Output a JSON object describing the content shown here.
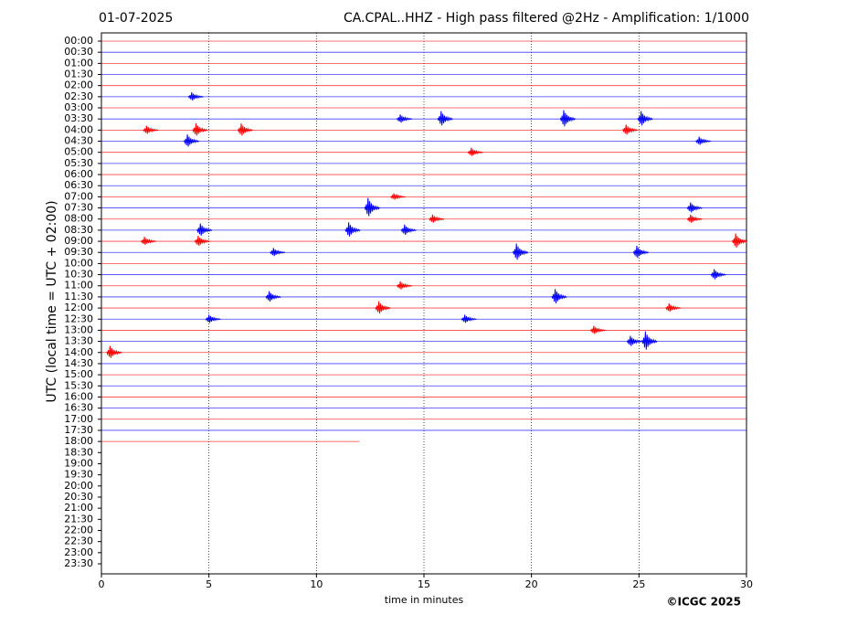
{
  "chart_data": {
    "type": "helicorder",
    "date": "01-07-2025",
    "title": "CA.CPAL..HHZ - High pass filtered @2Hz - Amplification: 1/1000",
    "y_label": "UTC (local time = UTC + 02:00)",
    "x_label": "time in minutes",
    "copyright": "©ICGC 2025",
    "categories": [
      "00:00",
      "00:30",
      "01:00",
      "01:30",
      "02:00",
      "02:30",
      "03:00",
      "03:30",
      "04:00",
      "04:30",
      "05:00",
      "05:30",
      "06:00",
      "06:30",
      "07:00",
      "07:30",
      "08:00",
      "08:30",
      "09:00",
      "09:30",
      "10:00",
      "10:30",
      "11:00",
      "11:30",
      "12:00",
      "12:30",
      "13:00",
      "13:30",
      "14:00",
      "14:30",
      "15:00",
      "15:30",
      "16:00",
      "16:30",
      "17:00",
      "17:30",
      "18:00",
      "18:30",
      "19:00",
      "19:30",
      "20:00",
      "20:30",
      "21:00",
      "21:30",
      "22:00",
      "22:30",
      "23:00",
      "23:30"
    ],
    "trace_colors": [
      "#ff0000",
      "#0000ff"
    ],
    "trace_end": [
      30,
      30,
      30,
      30,
      30,
      30,
      30,
      30,
      30,
      30,
      30,
      30,
      30,
      30,
      30,
      30,
      30,
      30,
      30,
      30,
      30,
      30,
      30,
      30,
      30,
      30,
      30,
      30,
      30,
      30,
      30,
      30,
      30,
      30,
      30,
      30,
      12,
      null,
      null,
      null,
      null,
      null,
      null,
      null,
      null,
      null,
      null,
      null
    ],
    "events": [
      {
        "row": 5,
        "minute": 4.2,
        "amplitude": 0.2
      },
      {
        "row": 7,
        "minute": 15.8,
        "amplitude": 0.35
      },
      {
        "row": 7,
        "minute": 21.5,
        "amplitude": 0.4
      },
      {
        "row": 7,
        "minute": 25.1,
        "amplitude": 0.35
      },
      {
        "row": 7,
        "minute": 13.9,
        "amplitude": 0.2
      },
      {
        "row": 8,
        "minute": 2.1,
        "amplitude": 0.2
      },
      {
        "row": 8,
        "minute": 4.4,
        "amplitude": 0.3
      },
      {
        "row": 8,
        "minute": 6.5,
        "amplitude": 0.3
      },
      {
        "row": 8,
        "minute": 24.4,
        "amplitude": 0.25
      },
      {
        "row": 9,
        "minute": 4.0,
        "amplitude": 0.3
      },
      {
        "row": 9,
        "minute": 27.8,
        "amplitude": 0.2
      },
      {
        "row": 10,
        "minute": 17.2,
        "amplitude": 0.2
      },
      {
        "row": 14,
        "minute": 13.6,
        "amplitude": 0.15
      },
      {
        "row": 15,
        "minute": 12.4,
        "amplitude": 0.45
      },
      {
        "row": 15,
        "minute": 27.4,
        "amplitude": 0.25
      },
      {
        "row": 16,
        "minute": 15.4,
        "amplitude": 0.2
      },
      {
        "row": 16,
        "minute": 27.4,
        "amplitude": 0.2
      },
      {
        "row": 17,
        "minute": 4.6,
        "amplitude": 0.3
      },
      {
        "row": 17,
        "minute": 11.5,
        "amplitude": 0.35
      },
      {
        "row": 17,
        "minute": 14.1,
        "amplitude": 0.25
      },
      {
        "row": 18,
        "minute": 4.5,
        "amplitude": 0.25
      },
      {
        "row": 18,
        "minute": 2.0,
        "amplitude": 0.2
      },
      {
        "row": 18,
        "minute": 29.5,
        "amplitude": 0.35
      },
      {
        "row": 19,
        "minute": 19.3,
        "amplitude": 0.4
      },
      {
        "row": 19,
        "minute": 24.9,
        "amplitude": 0.3
      },
      {
        "row": 19,
        "minute": 8.0,
        "amplitude": 0.2
      },
      {
        "row": 21,
        "minute": 28.5,
        "amplitude": 0.25
      },
      {
        "row": 22,
        "minute": 13.9,
        "amplitude": 0.2
      },
      {
        "row": 23,
        "minute": 7.8,
        "amplitude": 0.25
      },
      {
        "row": 23,
        "minute": 21.1,
        "amplitude": 0.35
      },
      {
        "row": 24,
        "minute": 12.9,
        "amplitude": 0.3
      },
      {
        "row": 24,
        "minute": 26.4,
        "amplitude": 0.2
      },
      {
        "row": 25,
        "minute": 5.0,
        "amplitude": 0.2
      },
      {
        "row": 25,
        "minute": 16.9,
        "amplitude": 0.2
      },
      {
        "row": 26,
        "minute": 22.9,
        "amplitude": 0.2
      },
      {
        "row": 27,
        "minute": 25.3,
        "amplitude": 0.45
      },
      {
        "row": 27,
        "minute": 24.6,
        "amplitude": 0.25
      },
      {
        "row": 28,
        "minute": 0.4,
        "amplitude": 0.3
      }
    ],
    "xlim": [
      0,
      30
    ],
    "xticks": [
      0,
      5,
      10,
      15,
      20,
      25,
      30
    ],
    "grid": true
  }
}
